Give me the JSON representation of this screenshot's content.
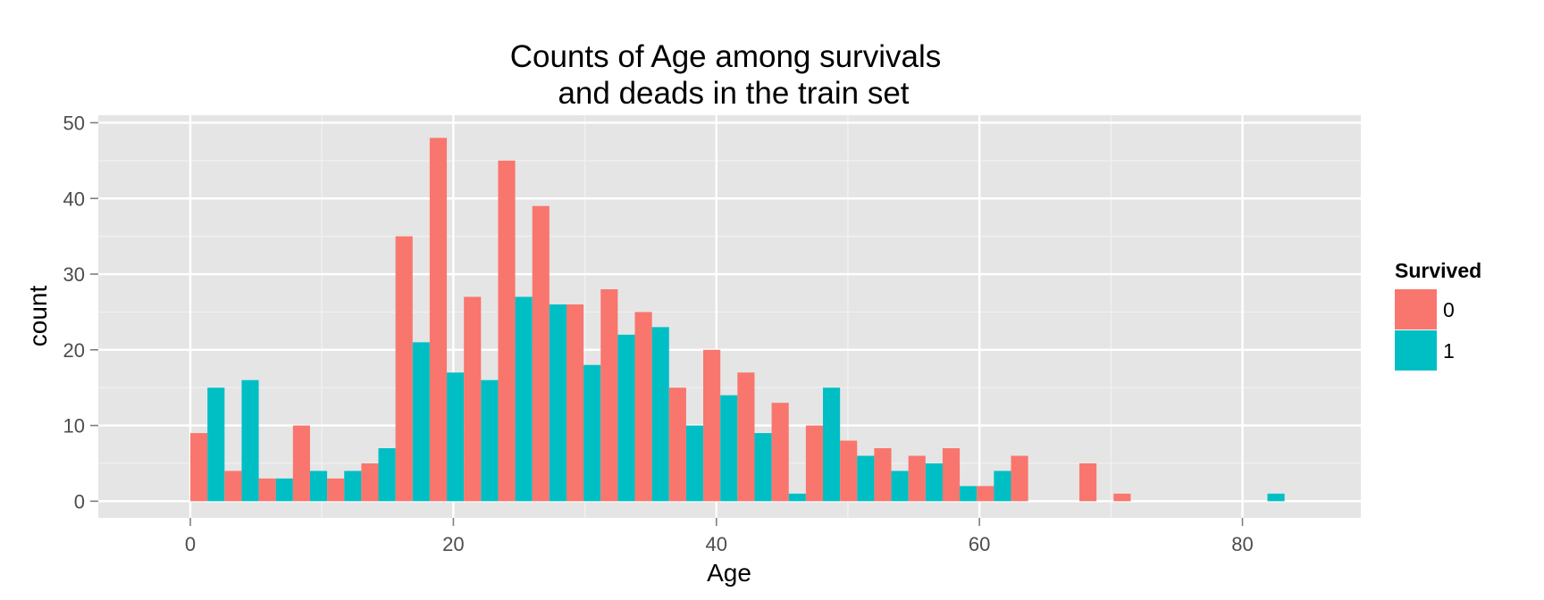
{
  "chart_data": {
    "type": "bar",
    "title_lines": [
      "Counts of Age among survivals",
      "and deads in the train set"
    ],
    "xlabel": "Age",
    "ylabel": "count",
    "xlim": [
      -7,
      89
    ],
    "ylim": [
      -2.2,
      51
    ],
    "x_ticks": [
      0,
      20,
      40,
      60,
      80
    ],
    "y_ticks": [
      0,
      10,
      20,
      30,
      40,
      50
    ],
    "bin_width": 2.6,
    "grid": true,
    "legend": {
      "title": "Survived",
      "position": "right"
    },
    "x": [
      1.3,
      3.9,
      6.5,
      9.1,
      11.7,
      14.3,
      16.9,
      19.5,
      22.1,
      24.7,
      27.3,
      29.9,
      32.5,
      35.1,
      37.7,
      40.3,
      42.9,
      45.5,
      48.1,
      50.7,
      53.3,
      55.9,
      58.5,
      61.1,
      63.7,
      66.3,
      68.9,
      71.5,
      74.1,
      76.7,
      79.3,
      81.9,
      84.5
    ],
    "series": [
      {
        "name": "0",
        "color": "#f8766d",
        "values": [
          9,
          4,
          3,
          10,
          3,
          5,
          35,
          48,
          27,
          45,
          39,
          26,
          28,
          25,
          15,
          20,
          17,
          13,
          10,
          8,
          7,
          6,
          7,
          2,
          6,
          0,
          5,
          1,
          0,
          0,
          0,
          0,
          0
        ]
      },
      {
        "name": "1",
        "color": "#00bfc4",
        "values": [
          15,
          16,
          3,
          4,
          4,
          7,
          21,
          17,
          16,
          27,
          26,
          18,
          22,
          23,
          10,
          14,
          9,
          1,
          15,
          6,
          4,
          5,
          2,
          4,
          0,
          0,
          0,
          0,
          0,
          0,
          0,
          1,
          0
        ]
      }
    ]
  }
}
